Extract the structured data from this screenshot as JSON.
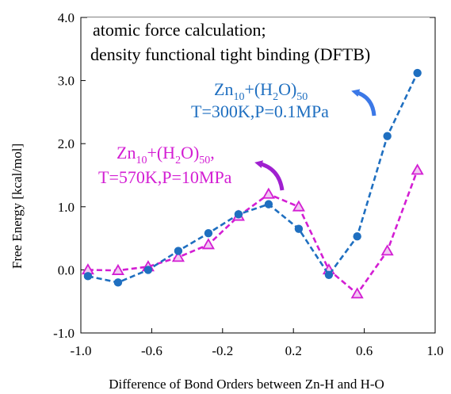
{
  "chart_data": {
    "type": "line",
    "title": "",
    "xlabel": "Difference of Bond Orders between Zn-H and H-O",
    "ylabel": "Free  Energy  [kcal/mol]",
    "xlim": [
      -1.0,
      1.0
    ],
    "ylim": [
      -1.0,
      4.0
    ],
    "x_ticks": [
      -1.0,
      -0.6,
      -0.2,
      0.2,
      0.6,
      1.0
    ],
    "x_tick_labels": [
      "-1.0",
      "-0.6",
      "-0.2",
      "0.2",
      "0.6",
      "1.0"
    ],
    "y_ticks": [
      -1.0,
      0.0,
      1.0,
      2.0,
      3.0,
      4.0
    ],
    "y_tick_labels": [
      "-1.0",
      "0.0",
      "1.0",
      "2.0",
      "3.0",
      "4.0"
    ],
    "grid": false,
    "legend": "none",
    "annotation_box": {
      "line1": "atomic force calculation;",
      "line2": "density functional tight binding (DFTB)"
    },
    "series": [
      {
        "name": "Zn10+(H2O)50, T=300K,P=0.1MPa",
        "color": "#1f6fc0",
        "marker": "circle",
        "x": [
          -0.96,
          -0.79,
          -0.62,
          -0.45,
          -0.28,
          -0.11,
          0.06,
          0.23,
          0.4,
          0.56,
          0.73,
          0.9
        ],
        "y": [
          -0.1,
          -0.2,
          0.0,
          0.3,
          0.58,
          0.88,
          1.04,
          0.65,
          -0.08,
          0.53,
          2.12,
          3.12
        ]
      },
      {
        "name": "Zn10+(H2O)50, T=570K,P=10MPa",
        "color": "#d31ed3",
        "marker": "triangle",
        "x": [
          -0.96,
          -0.79,
          -0.62,
          -0.45,
          -0.28,
          -0.11,
          0.06,
          0.23,
          0.4,
          0.56,
          0.73,
          0.9
        ],
        "y": [
          0.0,
          -0.01,
          0.05,
          0.2,
          0.4,
          0.85,
          1.2,
          1.0,
          0.0,
          -0.38,
          0.3,
          1.58
        ]
      }
    ],
    "labels": [
      {
        "series": 0,
        "base": "Zn",
        "sub1": "10",
        "mid": "+(H",
        "sub2": "2",
        "end": "O)",
        "sub3": "50",
        "line2": "T=300K,P=0.1MPa",
        "color": "#1f6fc0",
        "arrow_color": "#3b78e7"
      },
      {
        "series": 1,
        "base": "Zn",
        "sub1": "10",
        "mid": "+(H",
        "sub2": "2",
        "end": "O)",
        "sub3": "50",
        "sub3_suffix": ",",
        "line2": "T=570K,P=10MPa",
        "color": "#d31ed3",
        "arrow_color": "#a020d0"
      }
    ]
  }
}
